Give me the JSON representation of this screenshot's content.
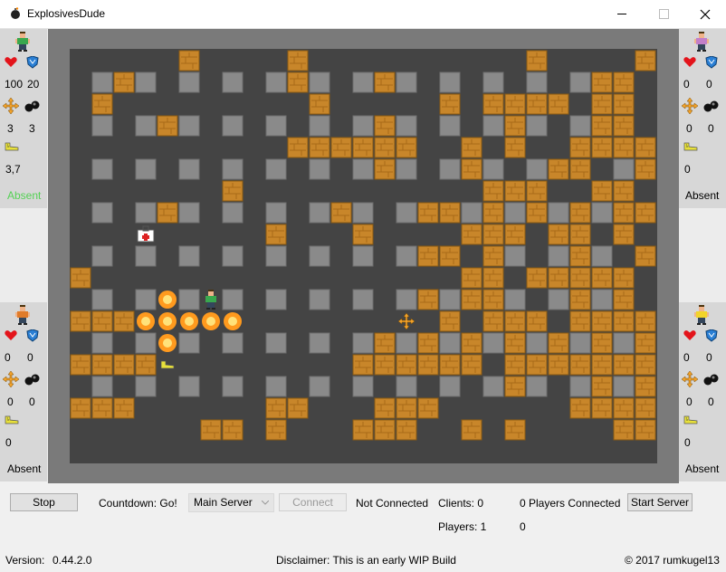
{
  "window": {
    "title": "ExplosivesDude",
    "app_icon": "bomb-icon"
  },
  "players": [
    {
      "slot": "top-left",
      "shirt": "#3aa84e",
      "hair": "#3a2a10",
      "lives": "100",
      "armor": "20",
      "range": "3",
      "bombs": "3",
      "speed": "3,7",
      "status": "Absent",
      "status_color": "#55d155"
    },
    {
      "slot": "top-right",
      "shirt": "#c27fc9",
      "hair": "#3a2a10",
      "lives": "0",
      "armor": "0",
      "range": "0",
      "bombs": "0",
      "speed": "0",
      "status": "Absent",
      "status_color": "#000000"
    },
    {
      "slot": "bottom-left",
      "shirt": "#e07b2a",
      "hair": "#3a2a10",
      "lives": "0",
      "armor": "0",
      "range": "0",
      "bombs": "0",
      "speed": "0",
      "status": "Absent",
      "status_color": "#000000"
    },
    {
      "slot": "bottom-right",
      "shirt": "#f2d42a",
      "hair": "#3a2a10",
      "lives": "0",
      "armor": "0",
      "range": "0",
      "bombs": "0",
      "speed": "0",
      "status": "Absent",
      "status_color": "#000000"
    }
  ],
  "controls": {
    "stop_label": "Stop",
    "countdown_text": "Countdown: Go!",
    "server_select": "Main Server",
    "connect_label": "Connect",
    "connection_status": "Not Connected",
    "clients_label": "Clients: 0",
    "players_label": "Players: 1",
    "players_connected": "0 Players Connected",
    "zero_count": "0",
    "start_server_label": "Start Server"
  },
  "footer": {
    "version_label": "Version:",
    "version": "0.44.2.0",
    "disclaimer": "Disclaimer: This is an early WIP Build",
    "copyright": "© 2017 rumkugel13"
  },
  "colors": {
    "floor": "#444444",
    "wall": "#8a8a8a",
    "crate": "#c8862a",
    "explosion": "#ff9a1e"
  },
  "board": {
    "legend": {
      "#": "stone wall",
      ".": "floor",
      "C": "wooden crate",
      "X": "explosion",
      "P": "player",
      "H": "health pickup",
      "S": "speed shoes pickup",
      "R": "range pickup"
    },
    "rows": [
      "#############################",
      "#.....C....C..........C....CCC#",
      "#.#C#.#.#.#C#.#C#.#.#.#.#CC.#",
      "#.C.........C.....C.CCCC.CC.C.#",
      "#.#.#C#.#.#.#.#C#.#.#C#.#CC.#",
      "#..........CCCCCC..C.C..CCCCC#",
      "#.#.#.#.#.#.#.#C#.#C#.#CC.#CC",
      "#.......C...........CCC..CC.CC#",
      "#.#.#C#.#.#.#C#.#CC#C#C#C#CC",
      "#...H.....C...C....CCC.CC.C.C#",
      "#.#.#.#.#.#.#.#.#CC.C#.#C#.C",
      "#C.................CC.CCCCC.CC#",
      "#.#.#X#P#.#.#.#.#C#CC#.#C#C",
      "#CCCXXXXX.......R.C.CCC.CCCCC#",
      "#.#.#X#.#.#.#.#C#C#C#C#C#C#C",
      "#CCCCS........CCCCCC.CCCCCCC#",
      "#.#.#.#.#.#.#.#.#.#.#C#.#C#C",
      "#CCC......CC...CCC......CCCCC#",
      "#......CC.C...CCC..C.C....CC#",
      "#############################"
    ]
  }
}
